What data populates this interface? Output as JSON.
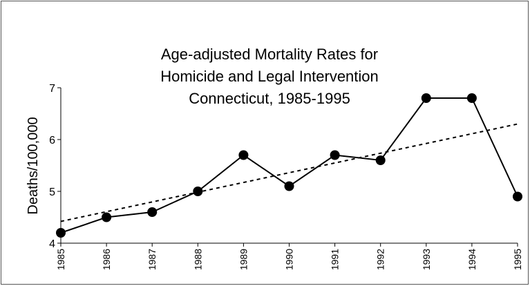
{
  "chart_data": {
    "type": "line",
    "title": [
      "Age-adjusted Mortality Rates for",
      "Homicide and Legal Intervention",
      "Connecticut, 1985-1995"
    ],
    "ylabel": "Deaths/100,000",
    "x": [
      1985,
      1986,
      1987,
      1988,
      1989,
      1990,
      1991,
      1992,
      1993,
      1994,
      1995
    ],
    "series": [
      {
        "color": "#000000",
        "values": [
          4.2,
          4.5,
          4.6,
          5.0,
          5.7,
          5.1,
          5.7,
          5.6,
          6.8,
          6.8,
          4.9
        ]
      }
    ],
    "trend": {
      "x": [
        1985,
        1995
      ],
      "values": [
        4.42,
        6.3
      ],
      "color": "#000000",
      "style": "dashed"
    },
    "xlim": [
      1985,
      1995
    ],
    "xticks": [
      1985,
      1986,
      1987,
      1988,
      1989,
      1990,
      1991,
      1992,
      1993,
      1994,
      1995
    ],
    "ylim": [
      4,
      7
    ],
    "yticks": [
      4,
      5,
      6,
      7
    ],
    "grid": false
  }
}
